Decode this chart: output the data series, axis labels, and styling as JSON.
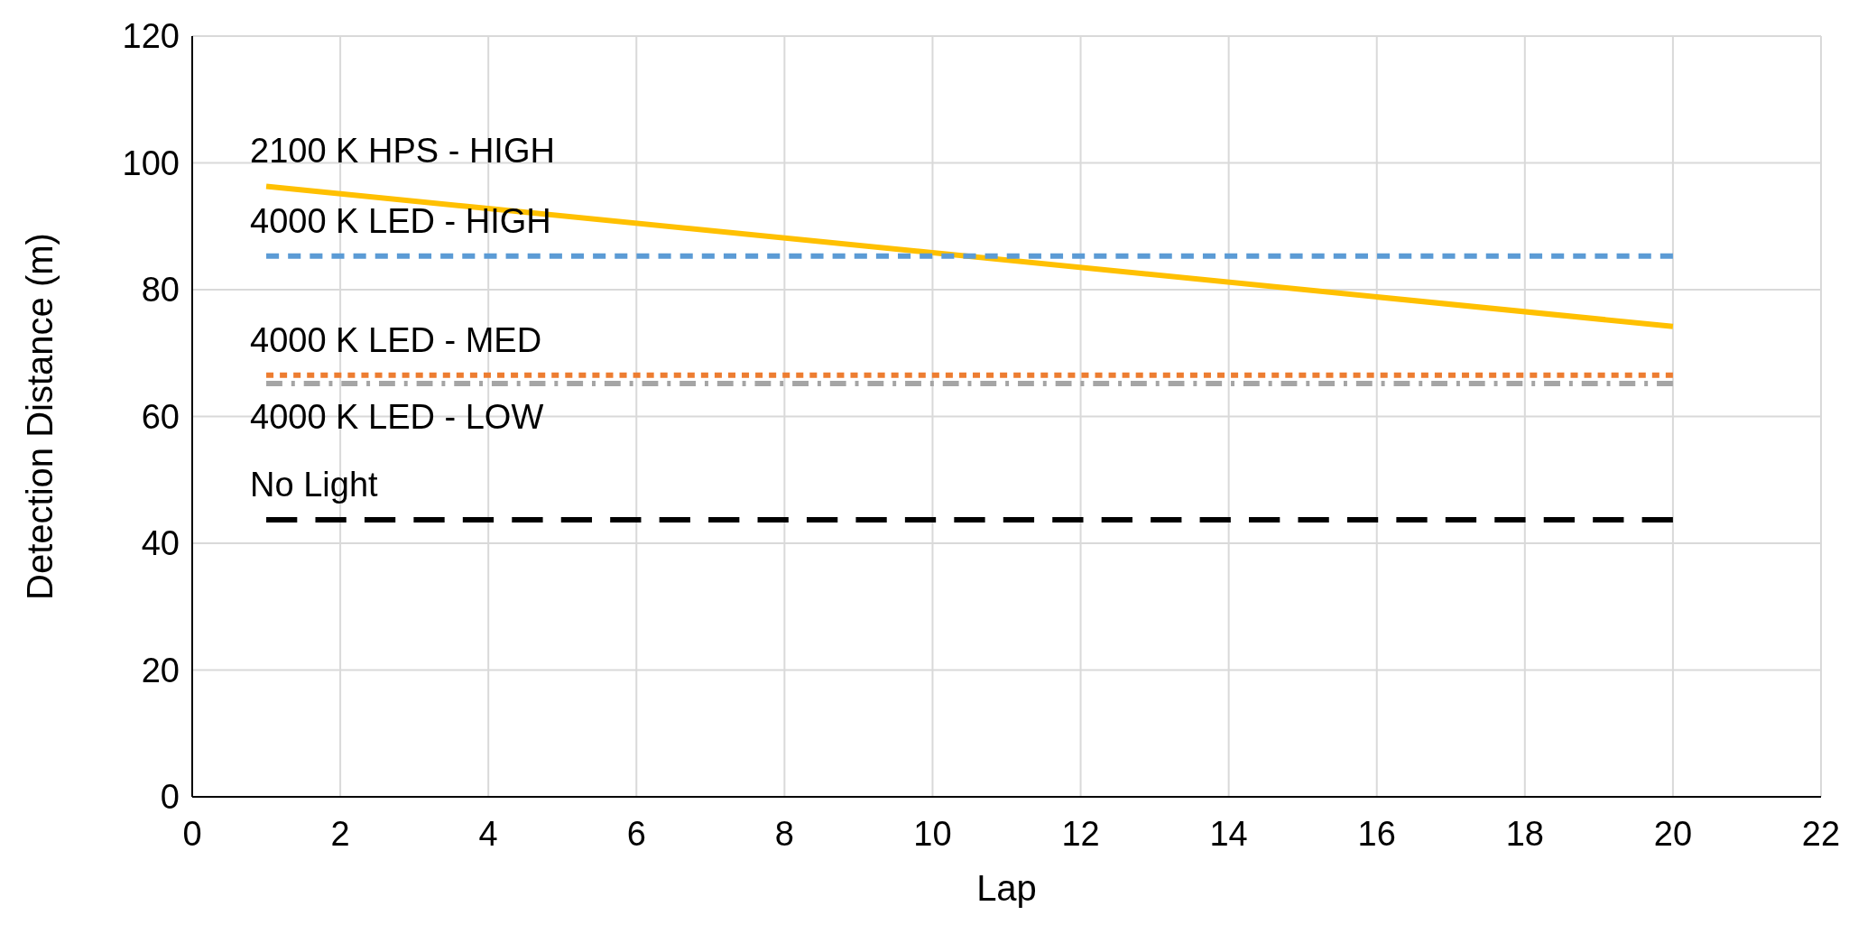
{
  "chart_data": {
    "type": "line",
    "xlabel": "Lap",
    "ylabel": "Detection Distance (m)",
    "x": [
      1,
      20
    ],
    "xlim": [
      0,
      22
    ],
    "xticks": [
      0,
      2,
      4,
      6,
      8,
      10,
      12,
      14,
      16,
      18,
      20,
      22
    ],
    "ylim": [
      0,
      120
    ],
    "yticks": [
      0,
      20,
      40,
      60,
      80,
      100,
      120
    ],
    "grid": true,
    "marker": "none",
    "series": [
      {
        "name": "2100 K HPS - HIGH",
        "color": "#ffc000",
        "values": [
          96.3,
          74.2
        ],
        "line_style": "solid"
      },
      {
        "name": "4000 K LED - HIGH",
        "color": "#5b9bd5",
        "values": [
          85.3,
          85.3
        ],
        "line_style": "dashed"
      },
      {
        "name": "4000 K LED - MED",
        "color": "#ed7d31",
        "values": [
          66.5,
          66.5
        ],
        "line_style": "dotted"
      },
      {
        "name": "4000 K LED - LOW",
        "color": "#a5a5a5",
        "values": [
          65.2,
          65.2
        ],
        "line_style": "dashdot"
      },
      {
        "name": "No Light",
        "color": "#000000",
        "values": [
          43.7,
          43.7
        ],
        "line_style": "longdash"
      }
    ]
  }
}
